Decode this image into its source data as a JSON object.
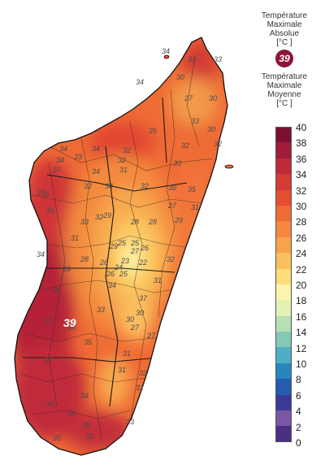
{
  "legend": {
    "max_abs_title_1": "Température",
    "max_abs_title_2": "Maximale",
    "max_abs_title_3": "Absolue",
    "max_abs_unit": "[°C ]",
    "max_abs_value": "39",
    "mean_title_1": "Température",
    "mean_title_2": "Maximale",
    "mean_title_3": "Moyenne",
    "mean_unit": "[°C ]",
    "ticks": [
      "40",
      "38",
      "36",
      "34",
      "32",
      "30",
      "28",
      "26",
      "24",
      "22",
      "20",
      "18",
      "16",
      "14",
      "12",
      "10",
      "8",
      "6",
      "4",
      "2",
      "0"
    ],
    "colors": [
      "#7d1031",
      "#a01c3b",
      "#bf2a3a",
      "#d63a34",
      "#e54e31",
      "#f06a34",
      "#f5873f",
      "#f8a24c",
      "#fbc05e",
      "#fddc7c",
      "#fdf4ad",
      "#e3f1b5",
      "#b7dfb4",
      "#84c8b7",
      "#4eaec4",
      "#2687bf",
      "#255bb0",
      "#3a3a96",
      "#7a57a5",
      "#4b2f80"
    ]
  },
  "map": {
    "max_label": "39",
    "district_values": [
      "34",
      "33",
      "33",
      "30",
      "27",
      "30",
      "34",
      "35",
      "34",
      "32",
      "34",
      "33",
      "34",
      "32",
      "32",
      "30",
      "34",
      "34",
      "32",
      "35",
      "33",
      "31",
      "35",
      "32",
      "32",
      "31",
      "37",
      "37",
      "35",
      "33",
      "32",
      "30",
      "30",
      "29",
      "28",
      "28",
      "31",
      "27",
      "29",
      "29",
      "25",
      "25",
      "26",
      "27",
      "22",
      "23",
      "24",
      "25",
      "26",
      "26",
      "28",
      "31",
      "32",
      "34",
      "36",
      "39",
      "39",
      "37",
      "33",
      "34",
      "37",
      "30",
      "30",
      "27",
      "27",
      "31",
      "35",
      "31",
      "32",
      "31",
      "35",
      "35",
      "33",
      "37",
      "34",
      "35",
      "36",
      "32"
    ]
  }
}
